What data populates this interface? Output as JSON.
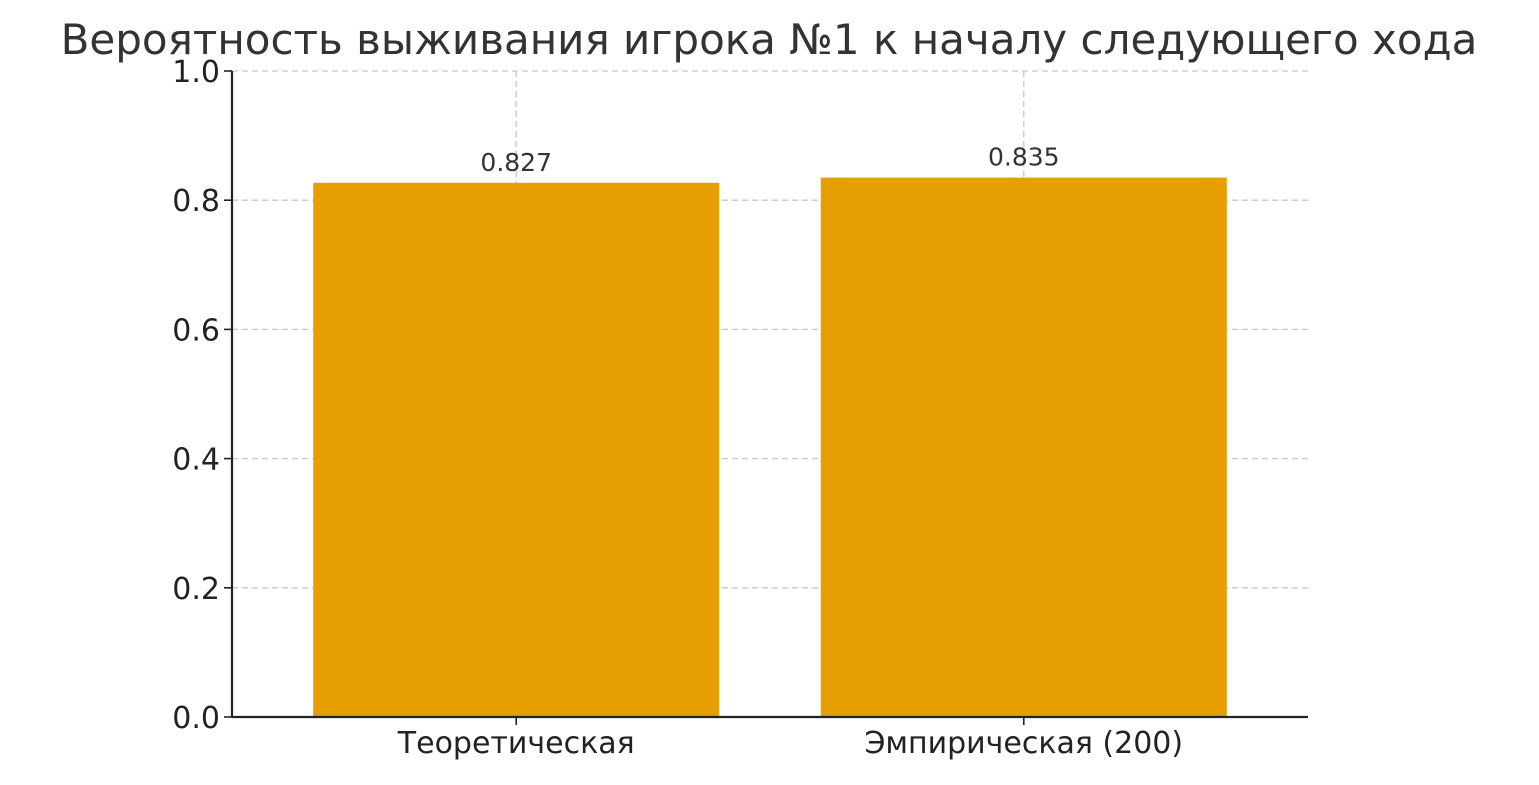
{
  "chart_data": {
    "type": "bar",
    "title": "Вероятность выживания игрока №1 к началу следующего хода",
    "xlabel": "",
    "ylabel": "",
    "categories": [
      "Теоретическая",
      "Эмпирическая (200)"
    ],
    "values": [
      0.827,
      0.835
    ],
    "data_labels": [
      "0.827",
      "0.835"
    ],
    "ylim": [
      0,
      1.0
    ],
    "yticks": [
      0.0,
      0.2,
      0.4,
      0.6,
      0.8,
      1.0
    ],
    "ytick_labels": [
      "0.0",
      "0.2",
      "0.4",
      "0.6",
      "0.8",
      "1.0"
    ],
    "grid": true,
    "bar_color": "#E69F00"
  }
}
